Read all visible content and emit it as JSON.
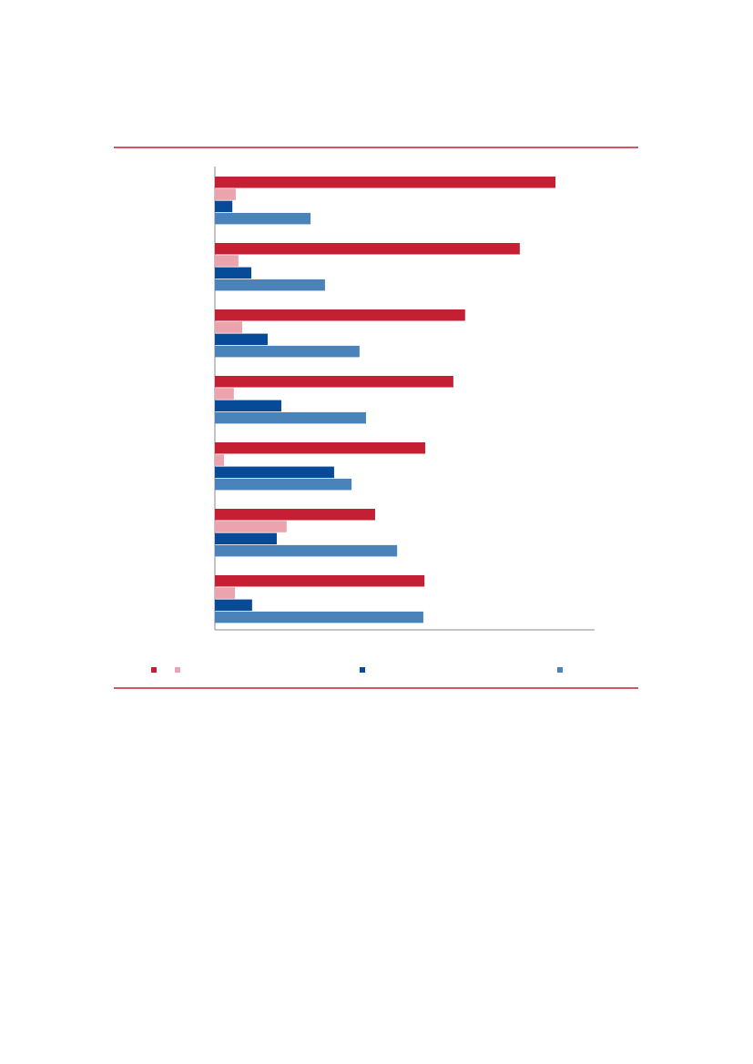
{
  "chart_data": {
    "type": "bar",
    "orientation": "horizontal",
    "categories": [
      null,
      null,
      null,
      null,
      null,
      null,
      null
    ],
    "xlim": [
      0,
      100
    ],
    "series": [
      {
        "color": "#c41f33",
        "values": [
          89.7,
          80.3,
          65.9,
          62.8,
          55.4,
          42.2,
          55.2
        ]
      },
      {
        "color": "#eba4ad",
        "values": [
          5.5,
          6.2,
          7.2,
          5.0,
          2.4,
          18.9,
          5.3
        ]
      },
      {
        "color": "#064a98",
        "values": [
          4.6,
          9.6,
          13.9,
          17.5,
          31.4,
          16.3,
          9.8
        ]
      },
      {
        "color": "#4a83b9",
        "values": [
          25.2,
          29.0,
          38.1,
          39.8,
          36.0,
          48.0,
          54.9
        ]
      }
    ]
  }
}
